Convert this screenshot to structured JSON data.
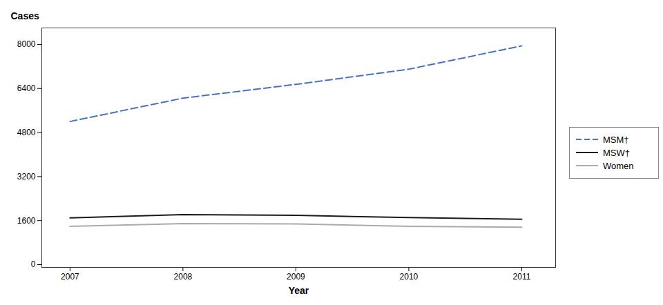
{
  "chart_data": {
    "type": "line",
    "x": [
      2007,
      2008,
      2009,
      2010,
      2011
    ],
    "series": [
      {
        "name": "MSM†",
        "color": "#4472C4",
        "line_style": "dashed",
        "values": [
          5200,
          6050,
          6550,
          7100,
          7950
        ]
      },
      {
        "name": "MSW†",
        "color": "#1a1a1a",
        "line_style": "solid",
        "values": [
          1700,
          1820,
          1790,
          1710,
          1650
        ]
      },
      {
        "name": "Women",
        "color": "#aaaaaa",
        "line_style": "solid",
        "values": [
          1390,
          1490,
          1480,
          1390,
          1360
        ]
      }
    ],
    "xlabel": "Year",
    "ylabel": "Cases",
    "xlim": [
      2006.75,
      2011.3
    ],
    "xticks": [
      2007,
      2008,
      2009,
      2010,
      2011
    ],
    "ylim": [
      -100,
      8600
    ],
    "yticks": [
      0,
      1600,
      3200,
      4800,
      6400,
      8000
    ],
    "grid": false,
    "legend": "right"
  }
}
